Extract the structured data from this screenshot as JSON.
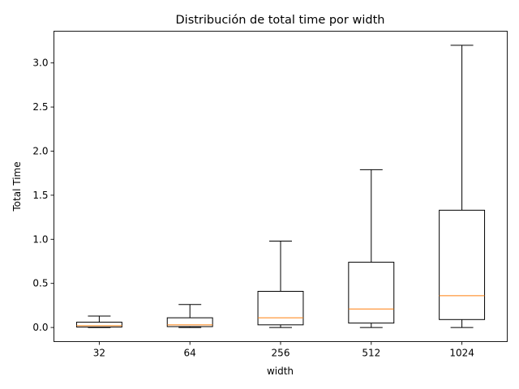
{
  "chart_data": {
    "type": "boxplot",
    "title": "Distribución de total time por width",
    "xlabel": "width",
    "ylabel": "Total Time",
    "categories": [
      "32",
      "64",
      "256",
      "512",
      "1024"
    ],
    "boxes": [
      {
        "whisker_low": 0.0,
        "q1": 0.005,
        "median": 0.02,
        "q3": 0.06,
        "whisker_high": 0.13
      },
      {
        "whisker_low": 0.0,
        "q1": 0.01,
        "median": 0.03,
        "q3": 0.11,
        "whisker_high": 0.26
      },
      {
        "whisker_low": 0.0,
        "q1": 0.03,
        "median": 0.11,
        "q3": 0.41,
        "whisker_high": 0.98
      },
      {
        "whisker_low": 0.0,
        "q1": 0.05,
        "median": 0.21,
        "q3": 0.74,
        "whisker_high": 1.79
      },
      {
        "whisker_low": 0.0,
        "q1": 0.09,
        "median": 0.36,
        "q3": 1.33,
        "whisker_high": 3.2
      }
    ],
    "ylim": [
      -0.16,
      3.36
    ],
    "yticks": [
      0.0,
      0.5,
      1.0,
      1.5,
      2.0,
      2.5,
      3.0
    ],
    "ytick_labels": [
      "0.0",
      "0.5",
      "1.0",
      "1.5",
      "2.0",
      "2.5",
      "3.0"
    ],
    "grid": false,
    "colors": {
      "box": "#000000",
      "median": "#ff7f0e"
    }
  }
}
